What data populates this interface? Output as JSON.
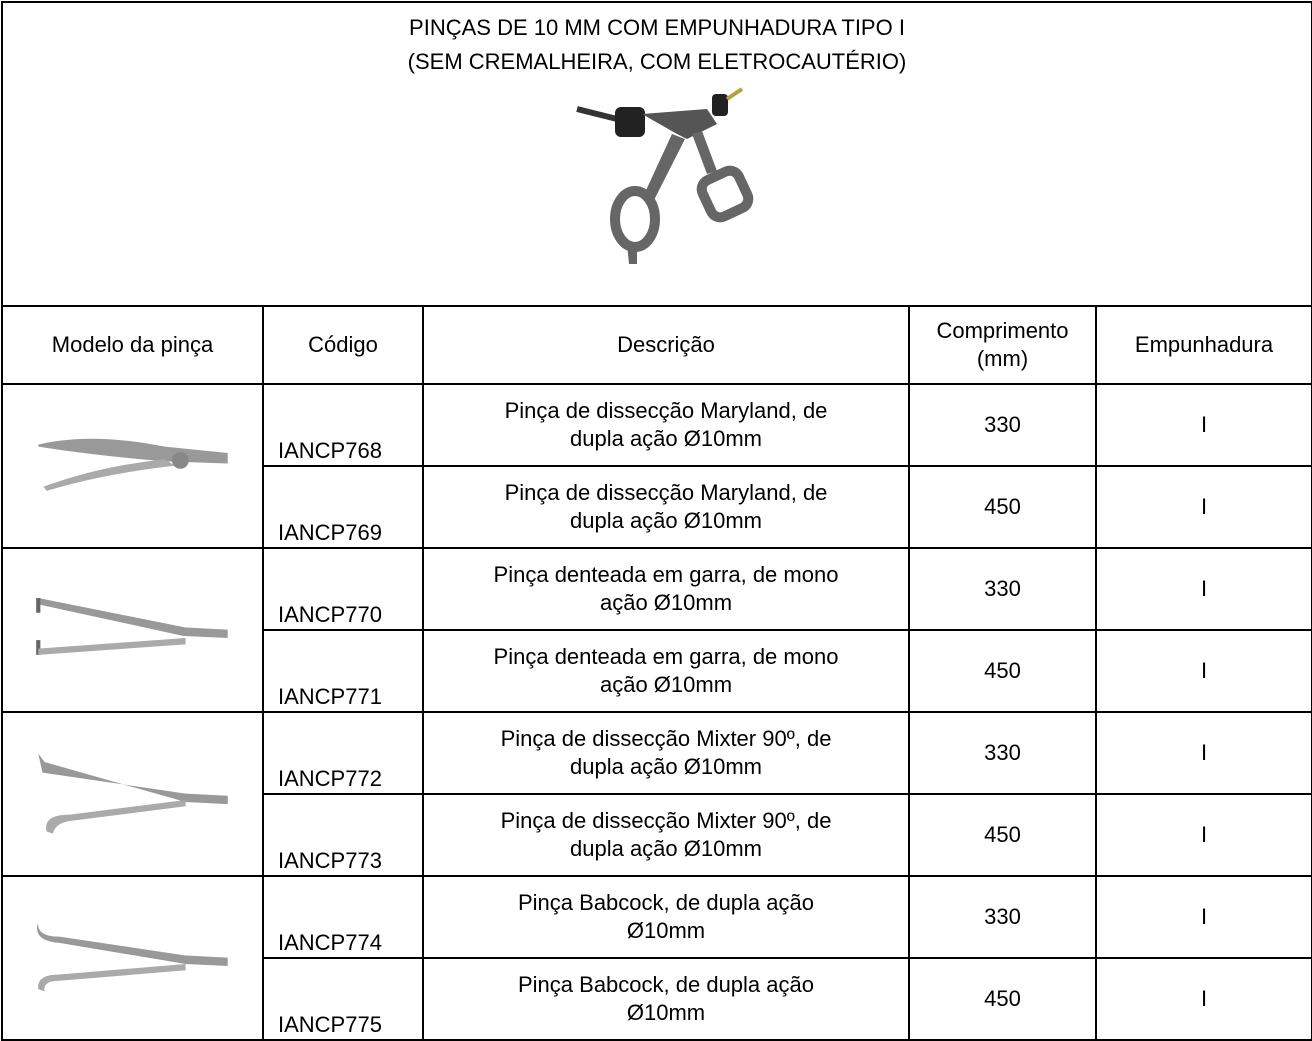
{
  "header": {
    "title_lines": [
      "PINÇAS DE 10 MM COM EMPUNHADURA TIPO I",
      "(SEM CREMALHEIRA, COM ELETROCAUTÉRIO)"
    ]
  },
  "table": {
    "columns": [
      "Modelo da pinça",
      "Código",
      "Descrição",
      [
        "Comprimento",
        "(mm)"
      ],
      "Empunhadura"
    ],
    "rows": [
      {
        "code": "IANCP768",
        "description": [
          "Pinça de dissecção Maryland, de",
          "dupla ação Ø10mm"
        ],
        "length": 330,
        "grip": "I"
      },
      {
        "code": "IANCP769",
        "description": [
          "Pinça de dissecção Maryland, de",
          "dupla ação Ø10mm"
        ],
        "length": 450,
        "grip": "I"
      },
      {
        "code": "IANCP770",
        "description": [
          "Pinça denteada em garra, de mono",
          "ação Ø10mm"
        ],
        "length": 330,
        "grip": "I"
      },
      {
        "code": "IANCP771",
        "description": [
          "Pinça denteada em garra, de mono",
          "ação Ø10mm"
        ],
        "length": 450,
        "grip": "I"
      },
      {
        "code": "IANCP772",
        "description": [
          "Pinça de dissecção Mixter 90º, de",
          "dupla ação Ø10mm"
        ],
        "length": 330,
        "grip": "I"
      },
      {
        "code": "IANCP773",
        "description": [
          "Pinça de dissecção Mixter 90º, de",
          "dupla ação Ø10mm"
        ],
        "length": 450,
        "grip": "I"
      },
      {
        "code": "IANCP774",
        "description": [
          "Pinça Babcock, de dupla ação",
          "Ø10mm"
        ],
        "length": 330,
        "grip": "I"
      },
      {
        "code": "IANCP775",
        "description": [
          "Pinça Babcock, de dupla ação",
          "Ø10mm"
        ],
        "length": 450,
        "grip": "I"
      }
    ]
  }
}
